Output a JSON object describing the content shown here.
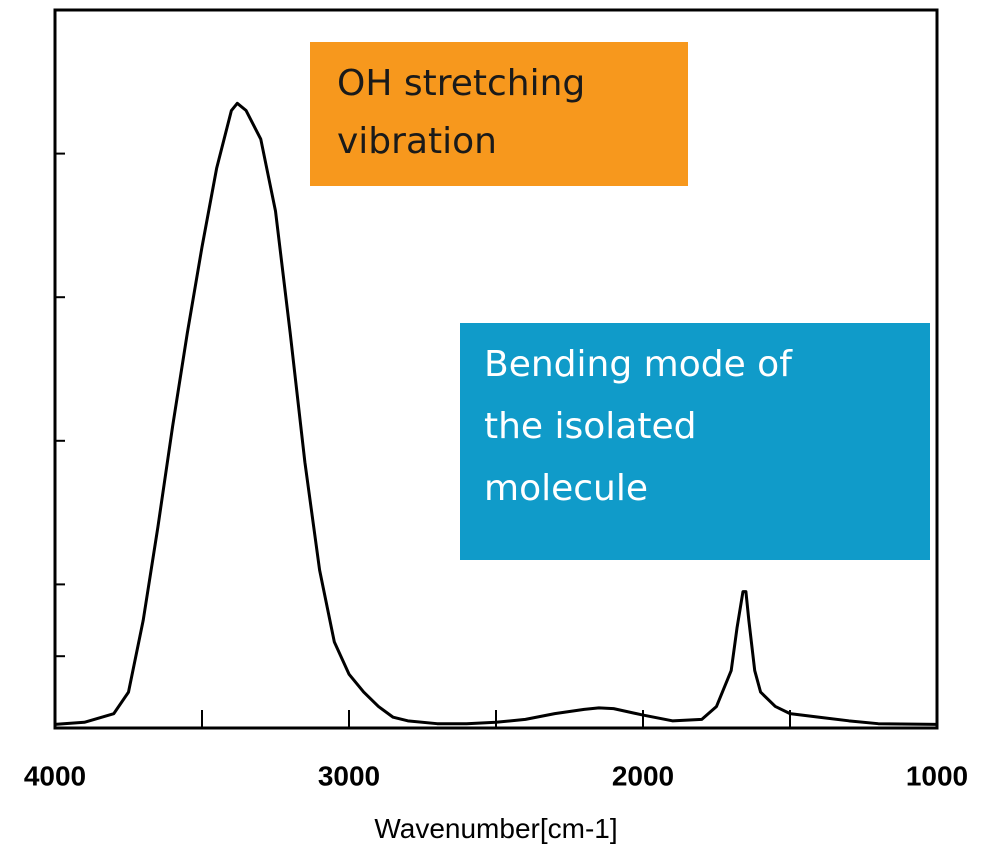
{
  "chart_data": {
    "type": "line",
    "x_label": "Wavenumber[cm-1]",
    "xlim": [
      4000,
      1000
    ],
    "xticks": [
      4000,
      3000,
      2000,
      1000
    ],
    "minor_xticks": [
      3500,
      2500,
      1500
    ],
    "ylim": [
      0,
      100
    ],
    "yticks": [
      10,
      20,
      40,
      60,
      80
    ],
    "ytick_labels": false,
    "series": [
      {
        "color": "#000000",
        "x": [
          4000,
          3900,
          3800,
          3750,
          3700,
          3650,
          3600,
          3550,
          3500,
          3450,
          3400,
          3380,
          3350,
          3300,
          3250,
          3200,
          3150,
          3100,
          3050,
          3000,
          2950,
          2900,
          2850,
          2800,
          2700,
          2600,
          2500,
          2400,
          2300,
          2200,
          2150,
          2100,
          2000,
          1900,
          1800,
          1750,
          1700,
          1680,
          1660,
          1650,
          1640,
          1620,
          1600,
          1550,
          1500,
          1400,
          1300,
          1200,
          1000
        ],
        "values": [
          0.5,
          0.8,
          2,
          5,
          15,
          28,
          42,
          55,
          67,
          78,
          86,
          87,
          86,
          82,
          72,
          55,
          37,
          22,
          12,
          7.5,
          5,
          3,
          1.5,
          1,
          0.6,
          0.6,
          0.8,
          1.2,
          2,
          2.6,
          2.8,
          2.7,
          1.8,
          1,
          1.2,
          3,
          8,
          14,
          19,
          19,
          15,
          8,
          5,
          3,
          2,
          1.5,
          1,
          0.6,
          0.5
        ]
      }
    ],
    "annotations": [
      {
        "lines": [
          "OH stretching",
          "vibration"
        ],
        "color": "#f7981d",
        "text_color": "#1a1a1a"
      },
      {
        "lines": [
          "Bending mode of",
          "the isolated",
          "molecule"
        ],
        "color": "#109bc9",
        "text_color": "#ffffff"
      }
    ]
  }
}
